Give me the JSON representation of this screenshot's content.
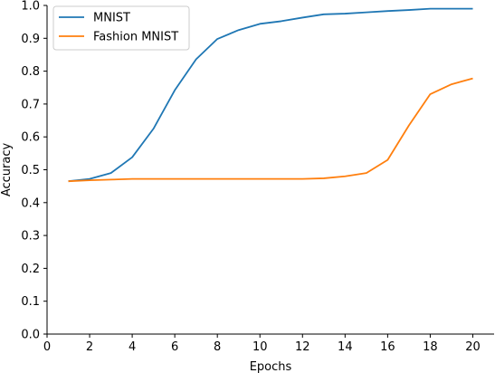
{
  "chart_data": {
    "type": "line",
    "xlabel": "Epochs",
    "ylabel": "Accuracy",
    "xlim": [
      0,
      21
    ],
    "ylim": [
      0,
      1.0
    ],
    "xticks": [
      0,
      2,
      4,
      6,
      8,
      10,
      12,
      14,
      16,
      18,
      20
    ],
    "yticks": [
      0.0,
      0.1,
      0.2,
      0.3,
      0.4,
      0.5,
      0.6,
      0.7,
      0.8,
      0.9,
      1.0
    ],
    "ytick_labels": [
      "0.0",
      "0.1",
      "0.2",
      "0.3",
      "0.4",
      "0.5",
      "0.6",
      "0.7",
      "0.8",
      "0.9",
      "1.0"
    ],
    "legend_position": "top-left",
    "grid": false,
    "x": [
      1,
      2,
      3,
      4,
      5,
      6,
      7,
      8,
      9,
      10,
      11,
      12,
      13,
      14,
      15,
      16,
      17,
      18,
      19,
      20
    ],
    "series": [
      {
        "name": "MNIST",
        "color": "#1f77b4",
        "values": [
          0.465,
          0.472,
          0.49,
          0.538,
          0.625,
          0.742,
          0.836,
          0.898,
          0.925,
          0.944,
          0.952,
          0.963,
          0.973,
          0.975,
          0.979,
          0.983,
          0.986,
          0.99,
          0.99,
          0.99
        ]
      },
      {
        "name": "Fashion MNIST",
        "color": "#ff7f0e",
        "values": [
          0.465,
          0.468,
          0.47,
          0.472,
          0.472,
          0.472,
          0.472,
          0.472,
          0.472,
          0.472,
          0.472,
          0.472,
          0.474,
          0.48,
          0.49,
          0.53,
          0.635,
          0.73,
          0.76,
          0.778
        ]
      }
    ]
  }
}
